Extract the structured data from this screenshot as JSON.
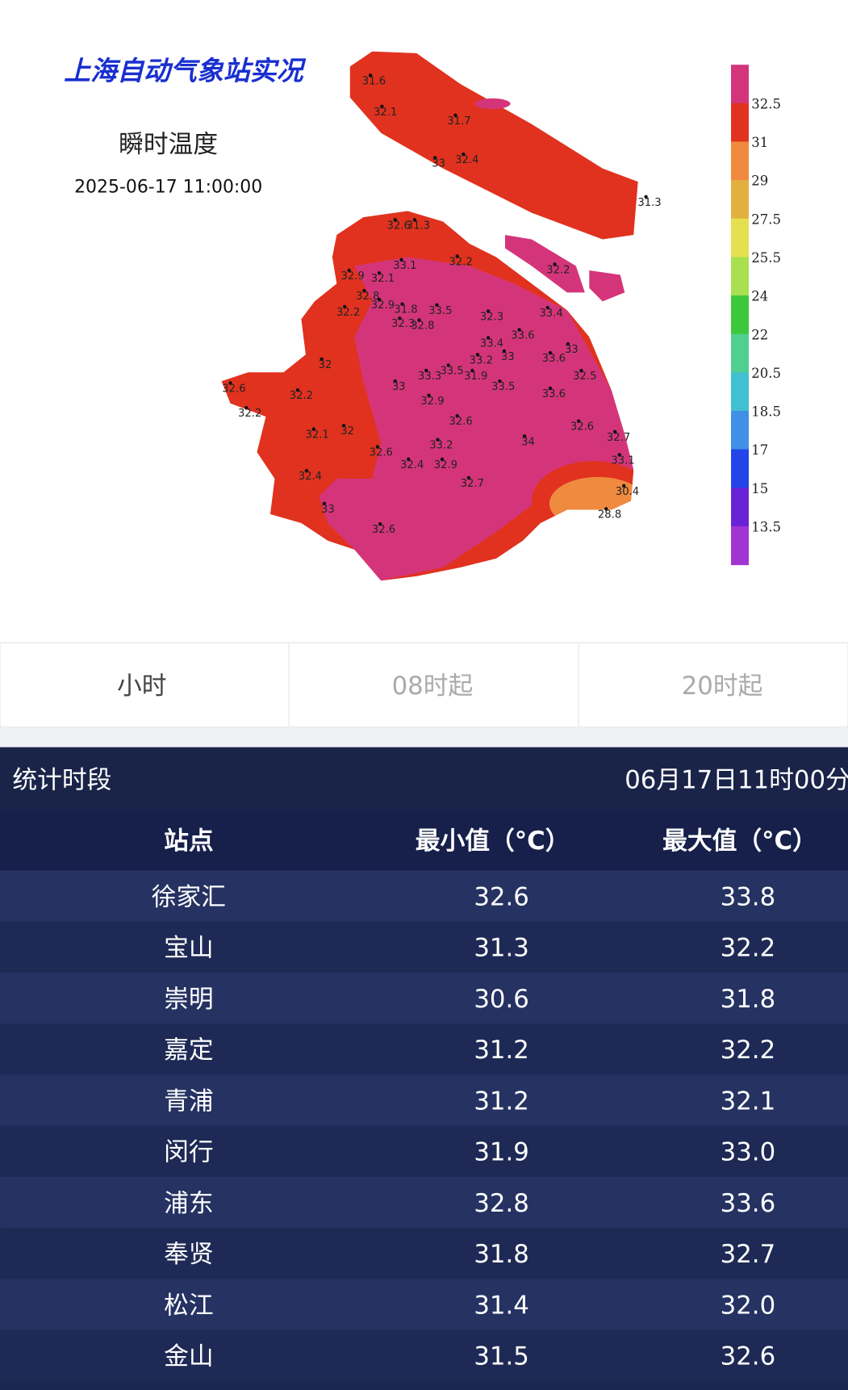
{
  "map": {
    "title": "上海自动气象站实况",
    "subtitle": "瞬时温度",
    "timestamp": "2025-06-17 11:00:00",
    "station_values": [
      31.6,
      32.1,
      31.7,
      33,
      32.4,
      31.3,
      32.6,
      31.3,
      33.1,
      32.2,
      32.2,
      32.9,
      32.1,
      32.8,
      32.9,
      32.2,
      31.8,
      33.5,
      32.3,
      33.4,
      32.3,
      32.8,
      33.6,
      33.4,
      33,
      33.2,
      33.6,
      33,
      32,
      33.3,
      33.5,
      31.9,
      32.5,
      32.6,
      33,
      33.5,
      33.6,
      32.2,
      32.9,
      32.2,
      32.6,
      32.6,
      32.1,
      32,
      34,
      32.7,
      33.2,
      32.6,
      32.4,
      32.9,
      33.1,
      32.4,
      32.7,
      30.4,
      33,
      28.8,
      32.6
    ],
    "legend": {
      "labels": [
        32.5,
        31,
        29,
        27.5,
        25.5,
        24,
        22,
        20.5,
        18.5,
        17,
        15,
        13.5
      ],
      "colors": [
        "#d4357a",
        "#e0321f",
        "#ef8a3f",
        "#e3b040",
        "#e6e050",
        "#a8e050",
        "#3cc83c",
        "#50d090",
        "#40c0d0",
        "#3f90e6",
        "#2244e8",
        "#6a22d6",
        "#a035d2"
      ]
    }
  },
  "tabs": [
    "小时",
    "08时起",
    "20时起"
  ],
  "table": {
    "period_label": "统计时段",
    "period": "06月17日11时00分",
    "columns": [
      "站点",
      "最小值（°C）",
      "最大值（°C）"
    ],
    "rows": [
      [
        "徐家汇",
        "32.6",
        "33.8"
      ],
      [
        "宝山",
        "31.3",
        "32.2"
      ],
      [
        "崇明",
        "30.6",
        "31.8"
      ],
      [
        "嘉定",
        "31.2",
        "32.2"
      ],
      [
        "青浦",
        "31.2",
        "32.1"
      ],
      [
        "闵行",
        "31.9",
        "33.0"
      ],
      [
        "浦东",
        "32.8",
        "33.6"
      ],
      [
        "奉贤",
        "31.8",
        "32.7"
      ],
      [
        "松江",
        "31.4",
        "32.0"
      ],
      [
        "金山",
        "31.5",
        "32.6"
      ]
    ]
  }
}
